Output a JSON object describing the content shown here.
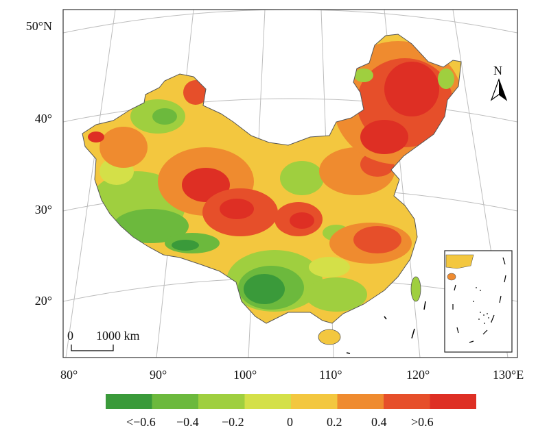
{
  "map": {
    "latitude_labels": [
      "50°N",
      "40°",
      "30°",
      "20°"
    ],
    "longitude_labels": [
      "80°",
      "90°",
      "100°",
      "110°",
      "120°",
      "130°E"
    ],
    "north_arrow_label": "N",
    "scale_bar": {
      "zero_label": "0",
      "distance_label": "1000 km"
    }
  },
  "legend": {
    "colors": [
      "#3a9a3a",
      "#6cb93d",
      "#9fcf3f",
      "#d4e048",
      "#f3c73f",
      "#ef8b2f",
      "#e64f2a",
      "#de2f24"
    ],
    "labels": [
      "<−0.6",
      "−0.4",
      "−0.2",
      "0",
      "0.2",
      "0.4",
      ">0.6"
    ]
  }
}
